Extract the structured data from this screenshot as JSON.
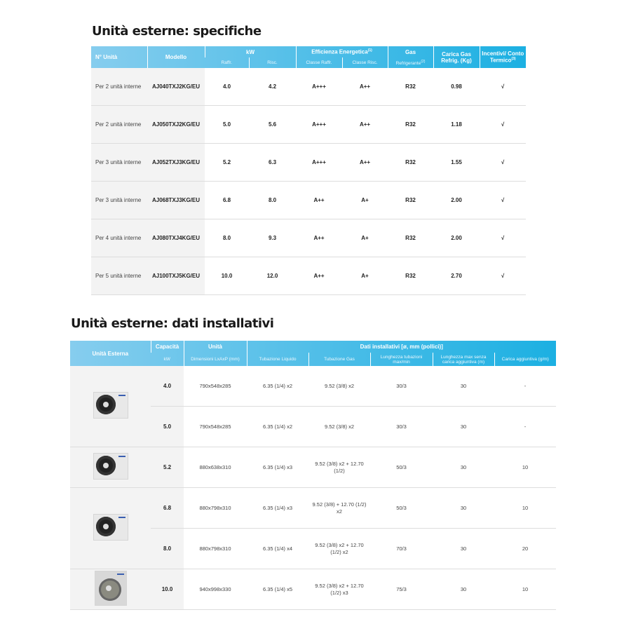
{
  "spec": {
    "title": "Unità esterne: specifiche",
    "headers": {
      "unit": "N° Unità",
      "model": "Modello",
      "kw": "kW",
      "raff": "Raffr.",
      "risc": "Risc.",
      "eff": "Efficienza Energetica",
      "eff_sup": "(1)",
      "classe_raff": "Classe Raffr.",
      "classe_risc": "Classe Risc.",
      "gas": "Gas",
      "refr": "Refrigerante",
      "refr_sup": "(2)",
      "carica": "Carica Gas Refrig. (Kg)",
      "incentivi": "Incentivi/ Conto Termico",
      "incentivi_sup": "(3)"
    },
    "rows": [
      [
        "Per 2 unità interne",
        "AJ040TXJ2KG/EU",
        "4.0",
        "4.2",
        "A+++",
        "A++",
        "R32",
        "0.98",
        "√"
      ],
      [
        "Per 2 unità interne",
        "AJ050TXJ2KG/EU",
        "5.0",
        "5.6",
        "A+++",
        "A++",
        "R32",
        "1.18",
        "√"
      ],
      [
        "Per 3 unità interne",
        "AJ052TXJ3KG/EU",
        "5.2",
        "6.3",
        "A+++",
        "A++",
        "R32",
        "1.55",
        "√"
      ],
      [
        "Per 3 unità interne",
        "AJ068TXJ3KG/EU",
        "6.8",
        "8.0",
        "A++",
        "A+",
        "R32",
        "2.00",
        "√"
      ],
      [
        "Per 4 unità interne",
        "AJ080TXJ4KG/EU",
        "8.0",
        "9.3",
        "A++",
        "A+",
        "R32",
        "2.00",
        "√"
      ],
      [
        "Per 5 unità interne",
        "AJ100TXJ5KG/EU",
        "10.0",
        "12.0",
        "A++",
        "A+",
        "R32",
        "2.70",
        "√"
      ]
    ]
  },
  "install": {
    "title": "Unità esterne: dati installativi",
    "headers": {
      "unit": "Unità Esterna",
      "cap": "Capacità",
      "kw": "kW",
      "unita": "Unità",
      "dim": "Dimensioni LxAxP (mm)",
      "dati": "Dati installativi [ø, mm (pollici)]",
      "liq": "Tubazione Liquido",
      "gas": "Tubazione Gas",
      "len": "Lunghezza tubazioni max/min",
      "lenmax": "Lunghezza max senza carica aggiuntiva (m)",
      "add": "Carica aggiuntiva (g/m)"
    },
    "rows": [
      [
        "4.0",
        "790x548x285",
        "6.35 (1/4) x2",
        "9.52 (3/8) x2",
        "30/3",
        "30",
        "-"
      ],
      [
        "5.0",
        "790x548x285",
        "6.35 (1/4) x2",
        "9.52 (3/8) x2",
        "30/3",
        "30",
        "-"
      ],
      [
        "5.2",
        "880x638x310",
        "6.35 (1/4) x3",
        "9.52 (3/8) x2 + 12.70 (1/2)",
        "50/3",
        "30",
        "10"
      ],
      [
        "6.8",
        "880x798x310",
        "6.35 (1/4) x3",
        "9.52 (3/8) + 12.70 (1/2) x2",
        "50/3",
        "30",
        "10"
      ],
      [
        "8.0",
        "880x798x310",
        "6.35 (1/4) x4",
        "9.52 (3/8) x2 + 12.70 (1/2) x2",
        "70/3",
        "30",
        "20"
      ],
      [
        "10.0",
        "940x998x330",
        "6.35 (1/4) x5",
        "9.52 (3/8) x2 + 12.70 (1/2) x3",
        "75/3",
        "30",
        "10"
      ]
    ],
    "images": [
      "outdoor-unit-icon",
      "outdoor-unit-icon",
      "outdoor-unit-icon",
      "outdoor-unit-large-icon"
    ]
  },
  "colors": {
    "header_start": "#86cdee",
    "header_end": "#1cb0e2"
  }
}
